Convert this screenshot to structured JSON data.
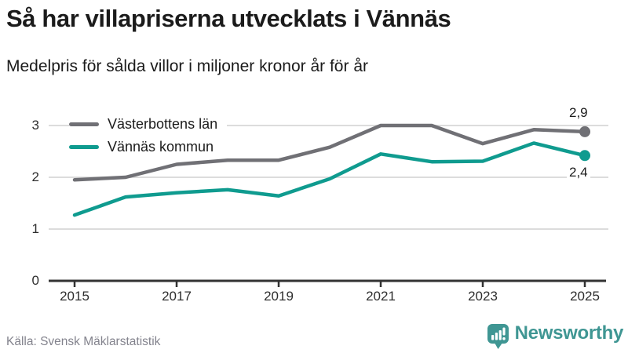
{
  "header": {
    "title": "Så har villapriserna utvecklats i Vännäs",
    "subtitle": "Medelpris för sålda villor i miljoner kronor år för år"
  },
  "chart_data": {
    "type": "line",
    "x": [
      2015,
      2016,
      2017,
      2018,
      2019,
      2020,
      2021,
      2022,
      2023,
      2024,
      2025
    ],
    "series": [
      {
        "name": "Västerbottens län",
        "color": "#707075",
        "values": [
          1.95,
          2.0,
          2.25,
          2.33,
          2.33,
          2.58,
          3.0,
          3.0,
          2.65,
          2.92,
          2.88
        ],
        "end_label": "2,9"
      },
      {
        "name": "Vännäs kommun",
        "color": "#0f9b8f",
        "values": [
          1.27,
          1.62,
          1.7,
          1.76,
          1.64,
          1.97,
          2.45,
          2.3,
          2.31,
          2.66,
          2.42
        ],
        "end_label": "2,4"
      }
    ],
    "title": "Så har villapriserna utvecklats i Vännäs",
    "xlabel": "",
    "ylabel": "",
    "ylim": [
      0,
      3.3
    ],
    "y_ticks": [
      "0",
      "1",
      "2",
      "3"
    ],
    "x_ticks": [
      "2015",
      "2017",
      "2019",
      "2021",
      "2023",
      "2025"
    ],
    "grid": "horizontal gridlines at 1, 2, 3",
    "legend_position": "top-left",
    "gridline_color": "#dcdcdc",
    "axis_color": "#333333"
  },
  "footer": {
    "source": "Källa: Svensk Mäklarstatistik",
    "brand": "Newsworthy",
    "brand_color": "#3f9693"
  }
}
